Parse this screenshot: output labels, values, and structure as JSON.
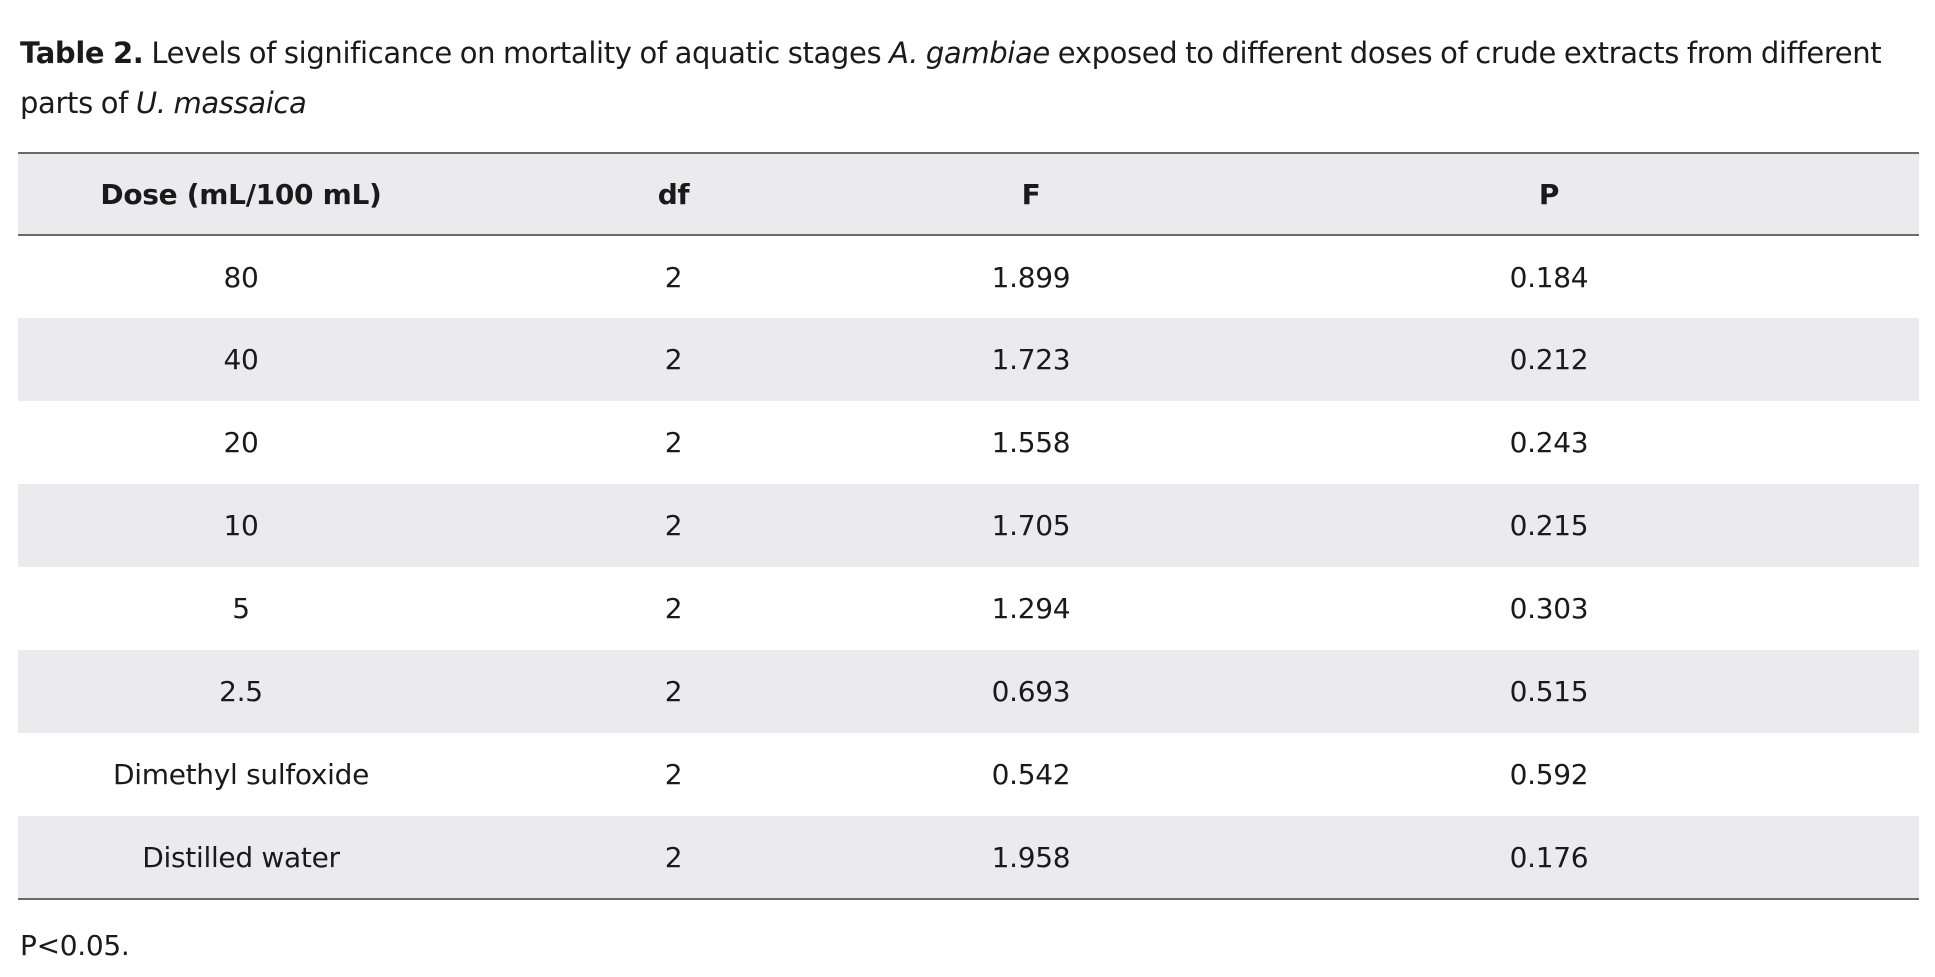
{
  "caption": {
    "label": "Table 2.",
    "text_1": "Levels of significance on mortality of aquatic stages",
    "species_1": "A. gambiae",
    "text_2": "exposed to different doses of crude extracts from different parts of",
    "species_2": "U. massaica"
  },
  "table": {
    "headers": [
      "Dose (mL/100 mL)",
      "df",
      "F",
      "P"
    ],
    "rows": [
      {
        "dose": "80",
        "df": "2",
        "f": "1.899",
        "p": "0.184"
      },
      {
        "dose": "40",
        "df": "2",
        "f": "1.723",
        "p": "0.212"
      },
      {
        "dose": "20",
        "df": "2",
        "f": "1.558",
        "p": "0.243"
      },
      {
        "dose": "10",
        "df": "2",
        "f": "1.705",
        "p": "0.215"
      },
      {
        "dose": "5",
        "df": "2",
        "f": "1.294",
        "p": "0.303"
      },
      {
        "dose": "2.5",
        "df": "2",
        "f": "0.693",
        "p": "0.515"
      },
      {
        "dose": "Dimethyl sulfoxide",
        "df": "2",
        "f": "0.542",
        "p": "0.592"
      },
      {
        "dose": "Distilled water",
        "df": "2",
        "f": "1.958",
        "p": "0.176"
      }
    ]
  },
  "footnote": "P<0.05.",
  "colors": {
    "stripe": "#ebebed",
    "rule": "#6a6a6a",
    "text": "#1a1a1a"
  }
}
